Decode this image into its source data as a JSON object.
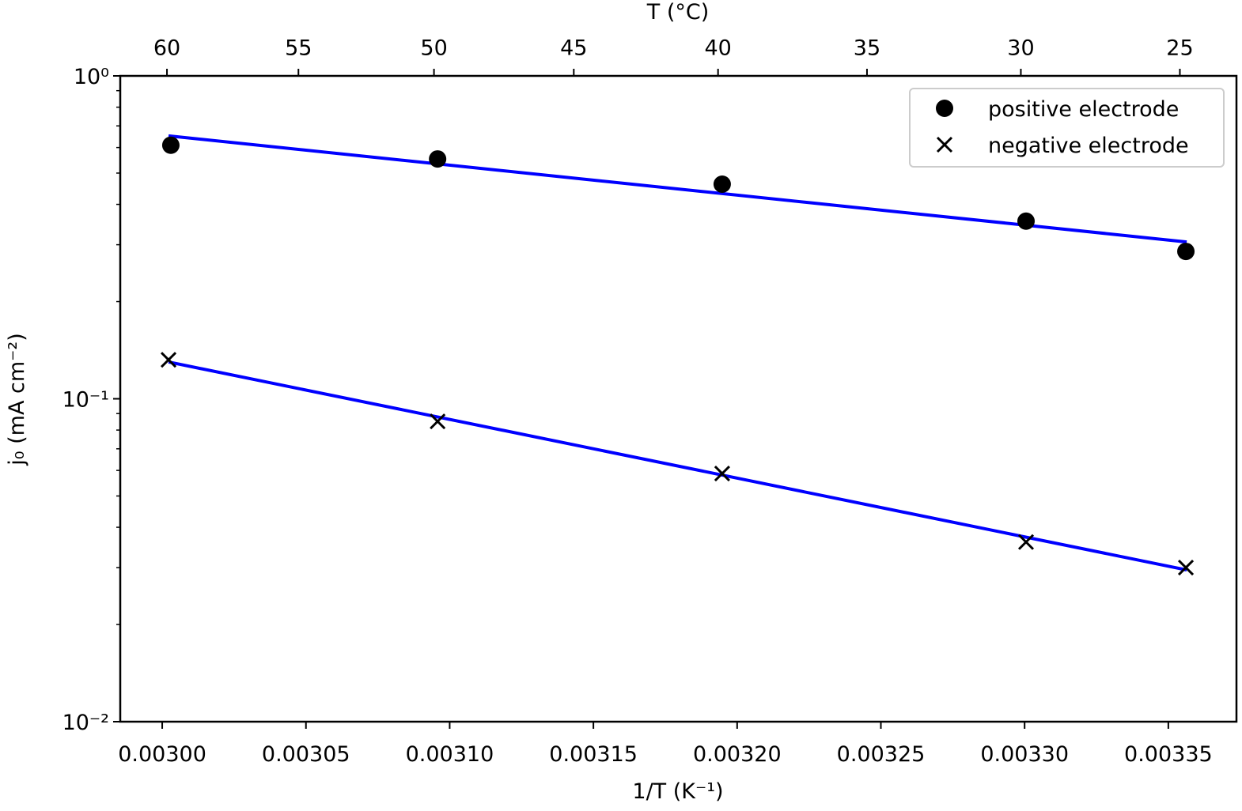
{
  "chart_data": {
    "type": "scatter",
    "xlabel": "1/T (K⁻¹)",
    "ylabel": "j₀ (mA cm⁻²)",
    "x2label": "T (°C)",
    "xlim": [
      0.0029854,
      0.0033737
    ],
    "ylim": [
      0.01,
      1
    ],
    "log_y": true,
    "xticks": [
      {
        "value": 0.003,
        "label": "0.00300"
      },
      {
        "value": 0.00305,
        "label": "0.00305"
      },
      {
        "value": 0.0031,
        "label": "0.00310"
      },
      {
        "value": 0.00315,
        "label": "0.00315"
      },
      {
        "value": 0.0032,
        "label": "0.00320"
      },
      {
        "value": 0.00325,
        "label": "0.00325"
      },
      {
        "value": 0.0033,
        "label": "0.00330"
      },
      {
        "value": 0.00335,
        "label": "0.00335"
      }
    ],
    "yticks": [
      {
        "value": 0.01,
        "label": "10⁻²"
      },
      {
        "value": 0.1,
        "label": "10⁻¹"
      },
      {
        "value": 1,
        "label": "10⁰"
      }
    ],
    "x2ticks": [
      60,
      55,
      50,
      45,
      40,
      35,
      30,
      25
    ],
    "legend": "upper right",
    "series": [
      {
        "name": "positive electrode",
        "color": "#000000",
        "marker": "o",
        "x": [
          0.003003,
          0.0030958,
          0.0031948,
          0.0033005,
          0.0033561
        ],
        "values": [
          0.61,
          0.553,
          0.462,
          0.355,
          0.286
        ]
      },
      {
        "name": "negative electrode",
        "color": "#000000",
        "marker": "x",
        "x": [
          0.0030022,
          0.0030958,
          0.0031948,
          0.0033005,
          0.0033561
        ],
        "values": [
          0.132,
          0.0851,
          0.0587,
          0.036,
          0.03
        ]
      }
    ],
    "fits": [
      {
        "color": "#0000ff",
        "x": [
          0.0030022,
          0.0033564
        ],
        "values": [
          0.652,
          0.306
        ]
      },
      {
        "color": "#0000ff",
        "x": [
          0.0030022,
          0.0033564
        ],
        "values": [
          0.13,
          0.0295
        ]
      }
    ]
  }
}
